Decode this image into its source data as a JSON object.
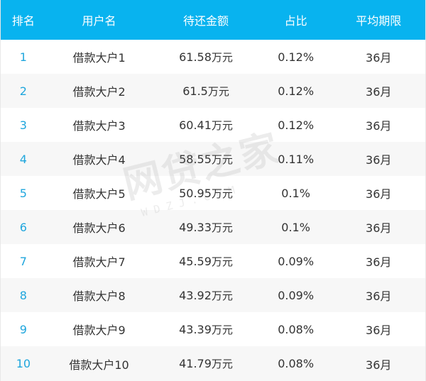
{
  "header": {
    "rank": "排名",
    "user": "用户名",
    "amount": "待还金额",
    "ratio": "占比",
    "term": "平均期限"
  },
  "unit": "万元",
  "rows": [
    {
      "rank": "1",
      "user": "借款大户1",
      "amount": "61.58",
      "ratio": "0.12%",
      "term": "36月"
    },
    {
      "rank": "2",
      "user": "借款大户2",
      "amount": "61.5",
      "ratio": "0.12%",
      "term": "36月"
    },
    {
      "rank": "3",
      "user": "借款大户3",
      "amount": "60.41",
      "ratio": "0.12%",
      "term": "36月"
    },
    {
      "rank": "4",
      "user": "借款大户4",
      "amount": "58.55",
      "ratio": "0.11%",
      "term": "36月"
    },
    {
      "rank": "5",
      "user": "借款大户5",
      "amount": "50.95",
      "ratio": "0.1%",
      "term": "36月"
    },
    {
      "rank": "6",
      "user": "借款大户6",
      "amount": "49.33",
      "ratio": "0.1%",
      "term": "36月"
    },
    {
      "rank": "7",
      "user": "借款大户7",
      "amount": "45.59",
      "ratio": "0.09%",
      "term": "36月"
    },
    {
      "rank": "8",
      "user": "借款大户8",
      "amount": "43.92",
      "ratio": "0.09%",
      "term": "36月"
    },
    {
      "rank": "9",
      "user": "借款大户9",
      "amount": "43.39",
      "ratio": "0.08%",
      "term": "36月"
    },
    {
      "rank": "10",
      "user": "借款大户10",
      "amount": "41.79",
      "ratio": "0.08%",
      "term": "36月"
    }
  ],
  "watermark": {
    "main": "网贷之家",
    "sub": "WDZJ.COM"
  },
  "colors": {
    "header_bg": "#08b3ef",
    "rank_text": "#1fa6dd",
    "row_alt_bg": "#f7f7f7"
  }
}
